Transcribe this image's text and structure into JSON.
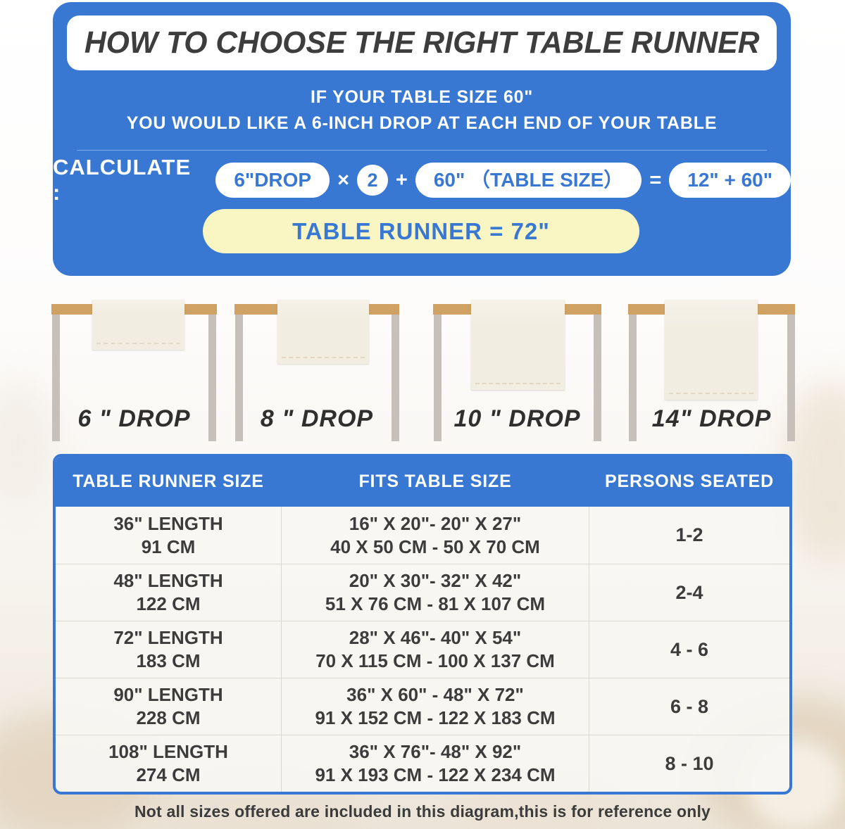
{
  "header": {
    "title": "HOW TO CHOOSE THE RIGHT TABLE RUNNER",
    "subtitle_line1": "IF YOUR TABLE SIZE 60\"",
    "subtitle_line2": "YOU WOULD LIKE A 6-INCH DROP AT EACH END OF YOUR TABLE"
  },
  "calculation": {
    "label": "CALCULATE :",
    "drop_value": "6\"DROP",
    "multiply_sign": "×",
    "multiplier": "2",
    "plus_sign": "+",
    "table_size_value": "60\" （TABLE SIZE）",
    "equals_sign": "=",
    "sum_value": "12\" + 60\"",
    "result": "TABLE RUNNER = 72\""
  },
  "drop_examples": [
    {
      "label": "6 \" DROP"
    },
    {
      "label": "8 \" DROP"
    },
    {
      "label": "10 \" DROP"
    },
    {
      "label": "14\" DROP"
    }
  ],
  "size_table": {
    "headers": [
      "TABLE RUNNER SIZE",
      "FITS TABLE SIZE",
      "PERSONS SEATED"
    ],
    "rows": [
      {
        "runner_inch": "36\" LENGTH",
        "runner_cm": "91 CM",
        "fits_inch": "16\" X 20\"- 20\" X 27\"",
        "fits_cm": "40 X 50 CM - 50 X 70 CM",
        "persons": "1-2"
      },
      {
        "runner_inch": "48\" LENGTH",
        "runner_cm": "122 CM",
        "fits_inch": "20\" X 30\"- 32\" X 42\"",
        "fits_cm": "51 X 76 CM - 81 X 107 CM",
        "persons": "2-4"
      },
      {
        "runner_inch": "72\" LENGTH",
        "runner_cm": "183 CM",
        "fits_inch": "28\" X 46\"- 40\" X 54\"",
        "fits_cm": "70 X 115 CM - 100 X 137 CM",
        "persons": "4 - 6"
      },
      {
        "runner_inch": "90\" LENGTH",
        "runner_cm": "228 CM",
        "fits_inch": "36\" X 60\" - 48\" X 72\"",
        "fits_cm": "91 X 152 CM - 122 X 183 CM",
        "persons": "6 - 8"
      },
      {
        "runner_inch": "108\" LENGTH",
        "runner_cm": "274 CM",
        "fits_inch": "36\" X 76\"- 48\" X 92\"",
        "fits_cm": "91 X 193 CM - 122 X 234 CM",
        "persons": "8 - 10"
      }
    ]
  },
  "footer": {
    "note": "Not all sizes offered are included in this diagram,this is for reference only"
  },
  "colors": {
    "accent_blue": "#3878D3",
    "result_yellow": "#FAF6C3",
    "tabletop_tan": "#CFA263",
    "runner_cream": "#F2EDE1",
    "leg_gray": "#C6C0BA",
    "text_dark": "#3C3C3C"
  }
}
